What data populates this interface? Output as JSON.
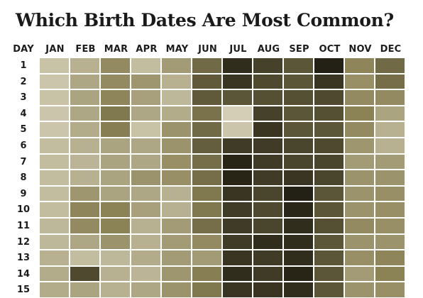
{
  "chart_data": {
    "type": "heatmap",
    "title": "Which Birth Dates Are Most Common?",
    "row_header": "DAY",
    "columns": [
      "JAN",
      "FEB",
      "MAR",
      "APR",
      "MAY",
      "JUN",
      "JUL",
      "AUG",
      "SEP",
      "OCT",
      "NOV",
      "DEC"
    ],
    "rows": [
      "1",
      "2",
      "3",
      "4",
      "5",
      "6",
      "7",
      "8",
      "9",
      "10",
      "11",
      "12",
      "13",
      "14",
      "15"
    ],
    "color_scale": {
      "low": "#dbd6c0",
      "mid": "#8b8256",
      "high": "#1f1d12"
    },
    "values": [
      [
        0.12,
        0.22,
        0.45,
        0.15,
        0.35,
        0.62,
        0.92,
        0.82,
        0.72,
        0.98,
        0.48,
        0.62
      ],
      [
        0.1,
        0.28,
        0.45,
        0.38,
        0.22,
        0.7,
        0.88,
        0.78,
        0.72,
        0.88,
        0.42,
        0.6
      ],
      [
        0.12,
        0.3,
        0.48,
        0.32,
        0.18,
        0.7,
        0.72,
        0.75,
        0.75,
        0.78,
        0.45,
        0.45
      ],
      [
        0.1,
        0.28,
        0.55,
        0.28,
        0.25,
        0.58,
        0.05,
        0.82,
        0.72,
        0.75,
        0.5,
        0.3
      ],
      [
        0.1,
        0.25,
        0.52,
        0.12,
        0.4,
        0.62,
        0.1,
        0.88,
        0.72,
        0.72,
        0.45,
        0.22
      ],
      [
        0.15,
        0.22,
        0.3,
        0.28,
        0.4,
        0.68,
        0.85,
        0.85,
        0.8,
        0.78,
        0.38,
        0.22
      ],
      [
        0.15,
        0.2,
        0.3,
        0.28,
        0.42,
        0.6,
        0.96,
        0.85,
        0.8,
        0.8,
        0.35,
        0.35
      ],
      [
        0.15,
        0.22,
        0.3,
        0.4,
        0.42,
        0.6,
        0.96,
        0.85,
        0.88,
        0.8,
        0.4,
        0.4
      ],
      [
        0.15,
        0.38,
        0.3,
        0.28,
        0.22,
        0.55,
        0.88,
        0.8,
        0.98,
        0.72,
        0.4,
        0.42
      ],
      [
        0.15,
        0.48,
        0.5,
        0.32,
        0.22,
        0.55,
        0.85,
        0.78,
        0.95,
        0.72,
        0.4,
        0.42
      ],
      [
        0.18,
        0.45,
        0.5,
        0.22,
        0.35,
        0.6,
        0.85,
        0.8,
        0.92,
        0.75,
        0.45,
        0.42
      ],
      [
        0.18,
        0.28,
        0.4,
        0.22,
        0.35,
        0.45,
        0.85,
        0.92,
        0.92,
        0.72,
        0.4,
        0.4
      ],
      [
        0.22,
        0.15,
        0.18,
        0.25,
        0.35,
        0.35,
        0.88,
        0.85,
        0.92,
        0.72,
        0.42,
        0.48
      ],
      [
        0.25,
        0.78,
        0.22,
        0.2,
        0.38,
        0.52,
        0.92,
        0.85,
        0.96,
        0.72,
        0.35,
        0.5
      ],
      [
        0.25,
        0.3,
        0.22,
        0.28,
        0.4,
        0.55,
        0.88,
        0.88,
        0.92,
        0.72,
        0.4,
        0.42
      ]
    ]
  }
}
